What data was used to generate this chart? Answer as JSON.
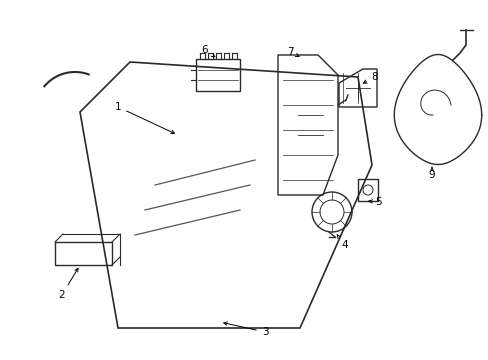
{
  "bg_color": "#ffffff",
  "line_color": "#2a2a2a",
  "label_color": "#000000",
  "fig_w": 4.89,
  "fig_h": 3.6,
  "dpi": 100
}
